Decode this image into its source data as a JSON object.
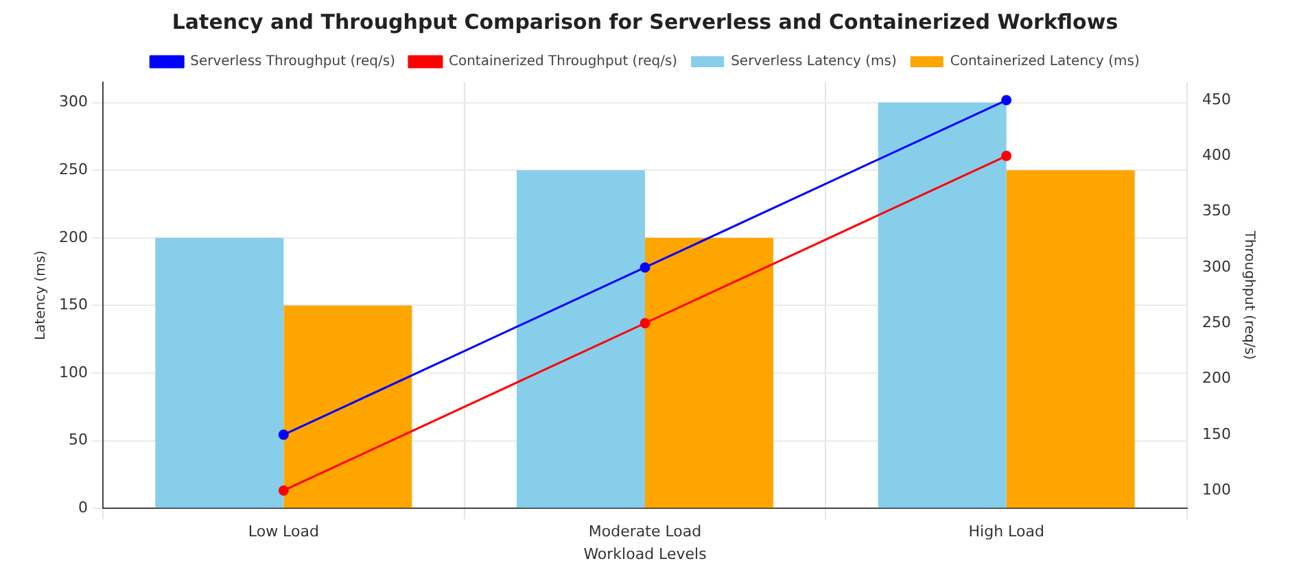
{
  "chart_data": {
    "type": "bar",
    "title": "Latency and Throughput Comparison for Serverless and Containerized Workflows",
    "xlabel": "Workload Levels",
    "ylabel": "Latency (ms)",
    "y2label": "Throughput (req/s)",
    "categories": [
      "Low Load",
      "Moderate Load",
      "High Load"
    ],
    "series": [
      {
        "name": "Serverless Latency (ms)",
        "color": "#87ceeb",
        "values": [
          200,
          250,
          300
        ]
      },
      {
        "name": "Containerized Latency (ms)",
        "color": "#ffa500",
        "values": [
          150,
          200,
          250
        ]
      },
      {
        "name": "Serverless Throughput (req/s)",
        "type": "line",
        "axis": "y2",
        "color": "#0000ff",
        "values": [
          150,
          300,
          450
        ]
      },
      {
        "name": "Containerized Throughput (req/s)",
        "type": "line",
        "axis": "y2",
        "color": "#ff0000",
        "values": [
          100,
          250,
          400
        ]
      }
    ],
    "ylim": [
      0,
      315
    ],
    "yticks": [
      0,
      50,
      100,
      150,
      200,
      250,
      300
    ],
    "y2lim": [
      84,
      466
    ],
    "y2ticks": [
      100,
      150,
      200,
      250,
      300,
      350,
      400,
      450
    ],
    "grid": true,
    "legend": "top",
    "marker": "circle",
    "line_style": "solid"
  }
}
